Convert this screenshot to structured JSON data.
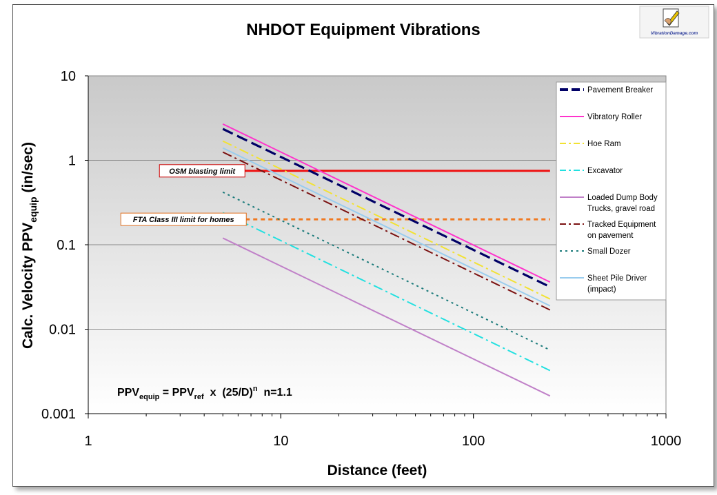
{
  "chart_data": {
    "type": "line",
    "title": "NHDOT Equipment Vibrations",
    "xlabel": "Distance (feet)",
    "ylabel": {
      "main": "Calc. Velocity PPV",
      "sub": "equip",
      "suffix": " (in/sec)"
    },
    "xscale": "log",
    "yscale": "log",
    "xlim": [
      1,
      1000
    ],
    "ylim": [
      0.001,
      10
    ],
    "x_ticks": [
      1,
      10,
      100,
      1000
    ],
    "x_tick_labels": [
      "1",
      "10",
      "100",
      "1000"
    ],
    "y_ticks": [
      0.001,
      0.01,
      0.1,
      1,
      10
    ],
    "y_tick_labels": [
      "0.001",
      "0.01",
      "0.1",
      "1",
      "10"
    ],
    "grid": "horizontal",
    "legend_position": "right",
    "series": [
      {
        "name": "Pavement Breaker",
        "color": "#000066",
        "style": "long-dash",
        "x": [
          5,
          250
        ],
        "y": [
          2.35,
          0.0317
        ]
      },
      {
        "name": "Vibratory Roller",
        "color": "#ff33cc",
        "style": "solid",
        "x": [
          5,
          250
        ],
        "y": [
          2.69,
          0.0362
        ]
      },
      {
        "name": "Hoe Ram",
        "color": "#f2e233",
        "style": "dash-dot",
        "x": [
          5,
          250
        ],
        "y": [
          1.69,
          0.0228
        ]
      },
      {
        "name": "Excavator",
        "color": "#22e0e0",
        "style": "dash-dot",
        "x": [
          5,
          250
        ],
        "y": [
          0.24,
          0.00324
        ]
      },
      {
        "name": "Loaded Dump Body Trucks, gravel road",
        "legend_lines": [
          "Loaded Dump Body",
          "Trucks, gravel road"
        ],
        "color": "#c080c8",
        "style": "solid",
        "x": [
          5,
          250
        ],
        "y": [
          0.12,
          0.00162
        ]
      },
      {
        "name": "Tracked Equipment on pavement",
        "legend_lines": [
          "Tracked Equipment",
          "on pavement"
        ],
        "color": "#7a1010",
        "style": "dash-dot",
        "x": [
          5,
          250
        ],
        "y": [
          1.25,
          0.0169
        ]
      },
      {
        "name": "Small Dozer",
        "color": "#1a7a7a",
        "style": "dotted",
        "x": [
          5,
          250
        ],
        "y": [
          0.42,
          0.00567
        ]
      },
      {
        "name": "Sheet Pile Driver (impact)",
        "legend_lines": [
          "Sheet Pile Driver",
          "(impact)"
        ],
        "color": "#99ccee",
        "style": "solid",
        "x": [
          5,
          250
        ],
        "y": [
          1.4,
          0.0189
        ]
      }
    ],
    "reference_lines": [
      {
        "label": "OSM blasting limit",
        "y": 0.75,
        "x_start": 5,
        "x_end": 250,
        "color": "#ee1111",
        "style": "solid"
      },
      {
        "label": "FTA Class III limit for homes",
        "y": 0.2,
        "x_start": 5,
        "x_end": 250,
        "color": "#f07820",
        "style": "dashed"
      }
    ],
    "annotation": {
      "a": "PPV",
      "a_sub": "equip",
      "b": " = PPV",
      "b_sub": "ref",
      "c": "  x  (25/D)",
      "c_sup": "n",
      "d": "  n=1.1"
    }
  },
  "logo": {
    "text": "VibrationDamage.com"
  }
}
